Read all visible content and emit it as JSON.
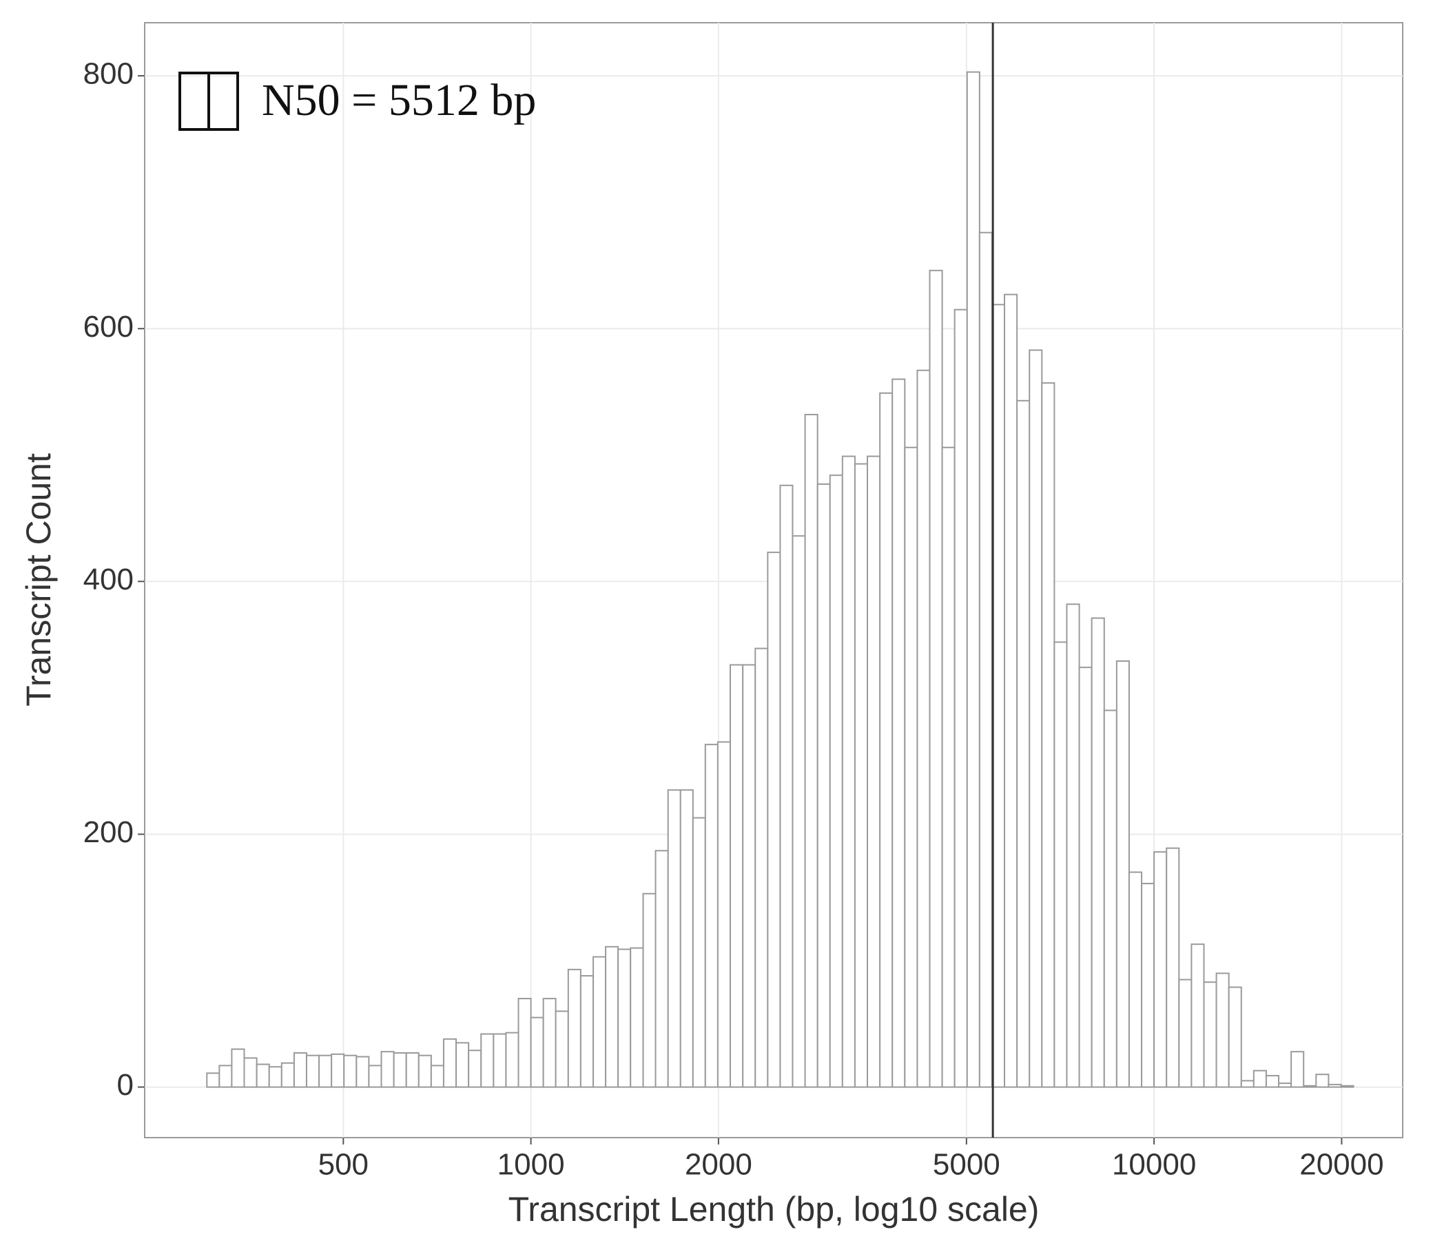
{
  "chart_data": {
    "type": "histogram",
    "x_label": "Transcript Length (bp, log10 scale)",
    "y_label": "Transcript Count",
    "annotation": "N50 = 5512 bp",
    "vline": 5512,
    "xlog": true,
    "grid": true,
    "color": "#9a9a9a",
    "xlim": [
      240,
      25060
    ],
    "ylim": [
      -40,
      842
    ],
    "xticks": [
      500,
      1000,
      2000,
      5000,
      10000,
      20000
    ],
    "yticks": [
      0,
      200,
      400,
      600,
      800
    ],
    "bins": [
      302.0,
      316.2,
      331.1,
      346.7,
      363.1,
      380.2,
      398.1,
      416.9,
      436.5,
      457.1,
      478.6,
      501.2,
      524.8,
      549.5,
      575.4,
      602.6,
      631.0,
      660.7,
      691.8,
      724.4,
      758.6,
      794.3,
      831.8,
      871.0,
      912.0,
      955.0,
      1000,
      1047,
      1096,
      1148,
      1202,
      1259,
      1318,
      1380,
      1445,
      1514,
      1585,
      1660,
      1738,
      1820,
      1905,
      1995,
      2089,
      2188,
      2291,
      2399,
      2512,
      2630,
      2754,
      2884,
      3020,
      3162,
      3311,
      3467,
      3631,
      3802,
      3981,
      4169,
      4365,
      4571,
      4786,
      5012,
      5248,
      5495,
      5754,
      6026,
      6310,
      6607,
      6918,
      7244,
      7586,
      7943,
      8318,
      8710,
      9120,
      9550,
      10000,
      10471,
      10965,
      11482,
      12023,
      12589,
      13183,
      13804,
      14454,
      15136,
      15849,
      16596,
      17378,
      18197,
      19055,
      19953,
      20893
    ],
    "values": [
      11,
      17,
      30,
      23,
      18,
      16,
      19,
      27,
      25,
      25,
      26,
      25,
      24,
      17,
      28,
      27,
      27,
      25,
      17,
      38,
      35,
      29,
      42,
      42,
      43,
      70,
      55,
      70,
      60,
      93,
      88,
      103,
      111,
      109,
      110,
      153,
      187,
      235,
      235,
      213,
      271,
      273,
      334,
      334,
      347,
      423,
      476,
      436,
      532,
      477,
      484,
      499,
      493,
      499,
      549,
      560,
      506,
      567,
      646,
      506,
      615,
      803,
      676,
      619,
      627,
      543,
      583,
      557,
      352,
      382,
      332,
      371,
      298,
      337,
      170,
      161,
      186,
      189,
      85,
      113,
      83,
      90,
      79,
      5,
      13,
      9,
      3,
      28,
      1,
      10,
      2,
      1
    ]
  }
}
